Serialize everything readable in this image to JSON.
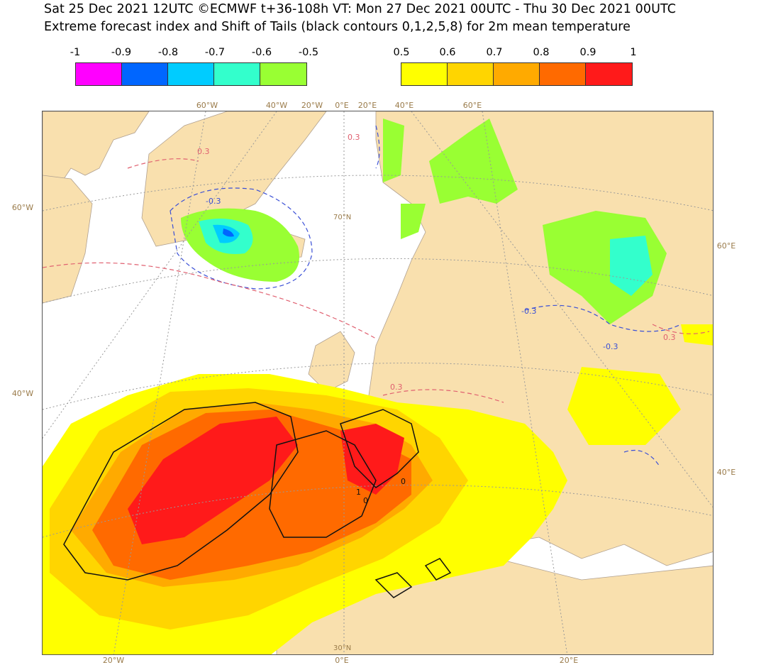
{
  "header": {
    "line1": "Sat 25 Dec 2021 12UTC ©ECMWF t+36-108h  VT: Mon 27 Dec 2021 00UTC - Thu 30 Dec 2021 00UTC",
    "line2": "Extreme forecast index and Shift of Tails (black contours 0,1,2,5,8) for 2m mean temperature"
  },
  "legend": {
    "cold": {
      "labels": [
        "-1",
        "-0.9",
        "-0.8",
        "-0.7",
        "-0.6",
        "-0.5"
      ],
      "colors": [
        "#ff00ff",
        "#0066ff",
        "#00ccff",
        "#33ffcc",
        "#99ff33"
      ]
    },
    "warm": {
      "labels": [
        "0.5",
        "0.6",
        "0.7",
        "0.8",
        "0.9",
        "1"
      ],
      "colors": [
        "#ffff00",
        "#ffd500",
        "#ffaa00",
        "#ff6a00",
        "#ff1a1a"
      ]
    }
  },
  "map": {
    "land_color": "#f9e0ae",
    "graticule_top": [
      "60°W",
      "40°W",
      "20°W",
      "0°E",
      "20°E",
      "40°E",
      "60°E"
    ],
    "graticule_bottom": [
      "20°W",
      "0°E",
      "20°E",
      "30°N"
    ],
    "graticule_left": [
      "60°W",
      "40°W"
    ],
    "graticule_right": [
      "60°E",
      "40°E"
    ],
    "lat_label": "70°N",
    "contour_labels": {
      "efi_pos": "0.3",
      "efi_neg": "-0.3",
      "sot_0": "0",
      "sot_1": "1"
    }
  }
}
